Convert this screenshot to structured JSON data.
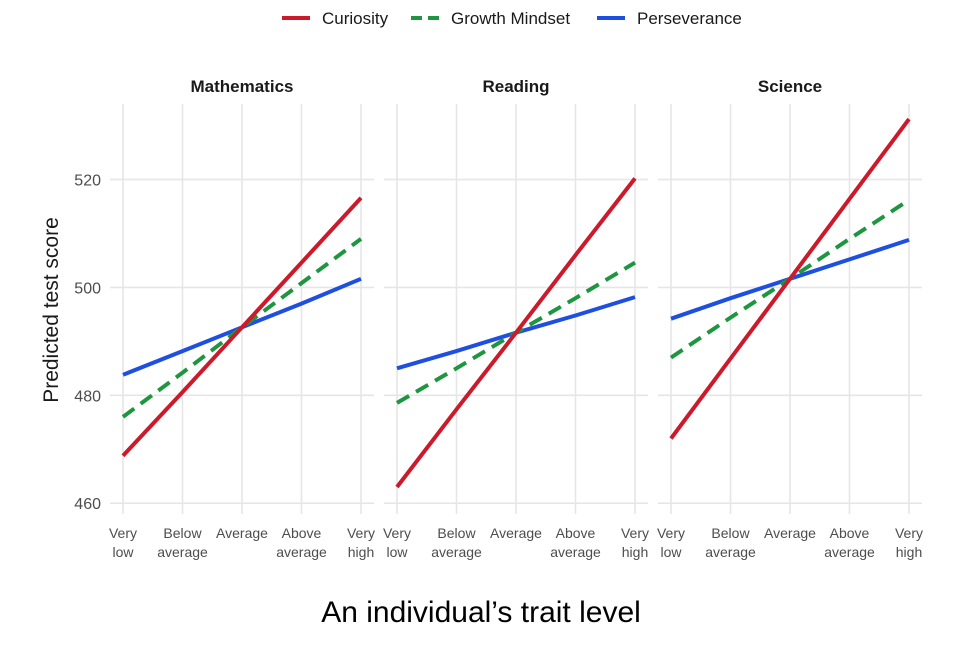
{
  "chart_data": {
    "type": "line",
    "xlabel": "An individual’s trait level",
    "ylabel": "Predicted test score",
    "ylim": [
      458,
      534
    ],
    "y_ticks": [
      460,
      480,
      500,
      520
    ],
    "categories": [
      [
        "Very",
        "low"
      ],
      [
        "Below",
        "average"
      ],
      [
        "Average"
      ],
      [
        "Above",
        "average"
      ],
      [
        "Very",
        "high"
      ]
    ],
    "legend": {
      "position": "top",
      "entries": [
        {
          "name": "Curiosity",
          "color": "#cc1a2b",
          "dash": "solid"
        },
        {
          "name": "Growth Mindset",
          "color": "#1e9640",
          "dash": "dashed"
        },
        {
          "name": "Perseverance",
          "color": "#1f4fe0",
          "dash": "solid"
        }
      ]
    },
    "panels": [
      {
        "title": "Mathematics",
        "series": [
          {
            "name": "Curiosity",
            "values": [
              468.8,
              480.6,
              492.6,
              504.6,
              516.6
            ]
          },
          {
            "name": "Growth Mindset",
            "values": [
              476.0,
              484.2,
              492.6,
              500.8,
              509.0
            ]
          },
          {
            "name": "Perseverance",
            "values": [
              483.8,
              488.2,
              492.6,
              497.0,
              501.6
            ]
          }
        ]
      },
      {
        "title": "Reading",
        "series": [
          {
            "name": "Curiosity",
            "values": [
              463.0,
              477.4,
              491.6,
              506.0,
              520.2
            ]
          },
          {
            "name": "Growth Mindset",
            "values": [
              478.6,
              485.0,
              491.6,
              498.0,
              504.6
            ]
          },
          {
            "name": "Perseverance",
            "values": [
              485.0,
              488.2,
              491.6,
              494.8,
              498.2
            ]
          }
        ]
      },
      {
        "title": "Science",
        "series": [
          {
            "name": "Curiosity",
            "values": [
              472.0,
              486.8,
              501.6,
              516.4,
              531.2
            ]
          },
          {
            "name": "Growth Mindset",
            "values": [
              487.0,
              494.4,
              501.6,
              509.0,
              516.2
            ]
          },
          {
            "name": "Perseverance",
            "values": [
              494.2,
              498.0,
              501.6,
              505.2,
              508.8
            ]
          }
        ]
      }
    ]
  }
}
